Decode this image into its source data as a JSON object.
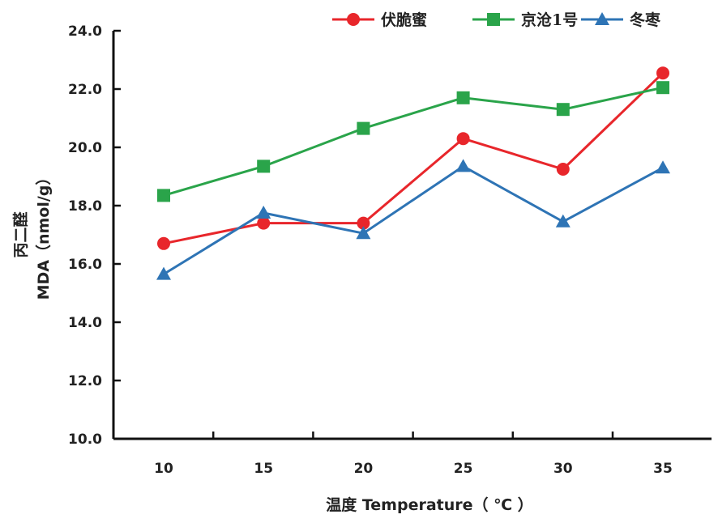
{
  "chart_data": {
    "type": "line",
    "title": "",
    "xlabel": "温度 Temperature（ ℃ ）",
    "ylabel_line1": "丙二醛",
    "ylabel_line2": "MDA（nmol/g）",
    "x": [
      10,
      15,
      20,
      25,
      30,
      35
    ],
    "x_tick_labels": [
      "10",
      "15",
      "20",
      "25",
      "30",
      "35"
    ],
    "ylim": [
      10.0,
      24.0
    ],
    "y_ticks": [
      10.0,
      12.0,
      14.0,
      16.0,
      18.0,
      20.0,
      22.0,
      24.0
    ],
    "y_tick_labels": [
      "10.0",
      "12.0",
      "14.0",
      "16.0",
      "18.0",
      "20.0",
      "22.0",
      "24.0"
    ],
    "grid": false,
    "legend_position": "top-right",
    "series": [
      {
        "name": "伏脆蜜",
        "marker": "circle",
        "color": "#e8262b",
        "values": [
          16.7,
          17.4,
          17.4,
          20.3,
          19.25,
          22.55
        ]
      },
      {
        "name": "京沧1号",
        "marker": "square",
        "color": "#2aa44a",
        "values": [
          18.35,
          19.35,
          20.65,
          21.7,
          21.3,
          22.05
        ]
      },
      {
        "name": "冬枣",
        "marker": "triangle",
        "color": "#2e74b5",
        "values": [
          15.65,
          17.75,
          17.05,
          19.35,
          17.45,
          19.3
        ]
      }
    ]
  }
}
